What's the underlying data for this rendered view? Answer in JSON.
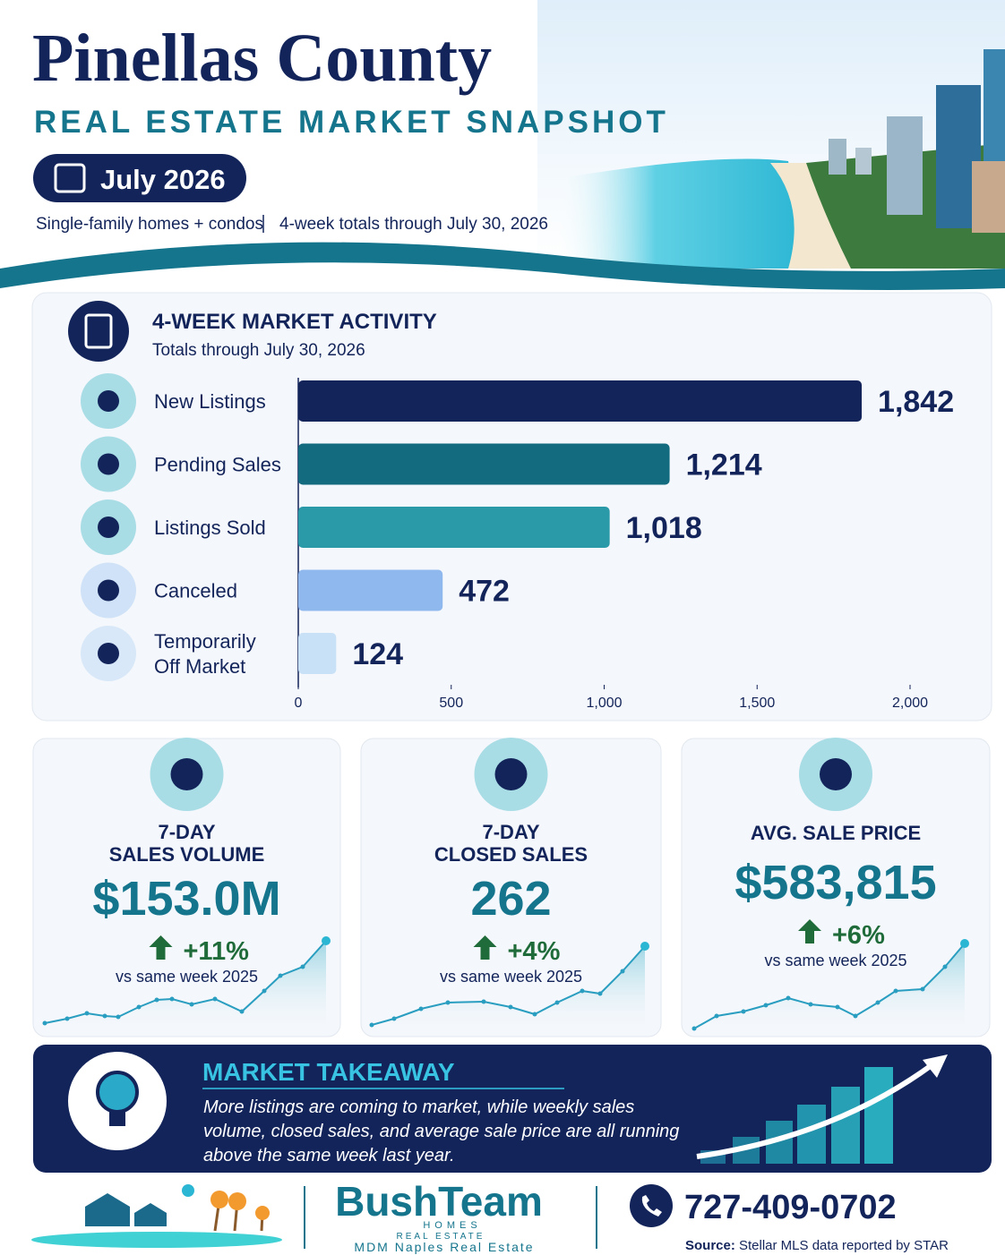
{
  "header": {
    "title": "Pinellas County",
    "subtitle": "REAL ESTATE MARKET SNAPSHOT",
    "period": "July 2026",
    "scope": "Single-family homes + condos",
    "range": "4-week totals through July 30, 2026"
  },
  "chart_data": {
    "type": "bar",
    "orientation": "horizontal",
    "title": "4-WEEK MARKET ACTIVITY",
    "subtitle": "Totals through July 30, 2026",
    "categories": [
      "New Listings",
      "Pending Sales",
      "Listings Sold",
      "Canceled",
      "Temporarily Off Market"
    ],
    "values": [
      1842,
      1214,
      1018,
      472,
      124
    ],
    "value_labels": [
      "1,842",
      "1,214",
      "1,018",
      "472",
      "124"
    ],
    "colors": [
      "#13245a",
      "#136b80",
      "#2a9aa8",
      "#8fb8ef",
      "#c9e1f7"
    ],
    "xlim": [
      0,
      2000
    ],
    "xticks": [
      0,
      500,
      {
        "value": 1000,
        "label": "1,000"
      },
      {
        "value": 1500,
        "label": "1,500"
      },
      {
        "value": 2000,
        "label": "2,000"
      }
    ]
  },
  "kpis": [
    {
      "label_lines": [
        "7-DAY",
        "SALES VOLUME"
      ],
      "value": "$153.0M",
      "change": "+11%",
      "comparison": "vs same week 2025"
    },
    {
      "label_lines": [
        "7-DAY",
        "CLOSED SALES"
      ],
      "value": "262",
      "change": "+4%",
      "comparison": "vs same week 2025"
    },
    {
      "label_lines": [
        "AVG. SALE PRICE"
      ],
      "value": "$583,815",
      "change": "+6%",
      "comparison": "vs same week 2025"
    }
  ],
  "takeaway": {
    "title": "MARKET TAKEAWAY",
    "lines": [
      "More listings are coming to market, while weekly sales",
      "volume, closed sales, and average sale price are all running",
      "above the same week last year."
    ]
  },
  "footer": {
    "brand": "BushTeam",
    "tagline1": "HOMES",
    "tagline2": "REAL ESTATE",
    "company": "MDM Naples Real Estate",
    "phone": "727-409-0702",
    "source_label": "Source:",
    "source": "Stellar MLS data reported by STAR"
  }
}
